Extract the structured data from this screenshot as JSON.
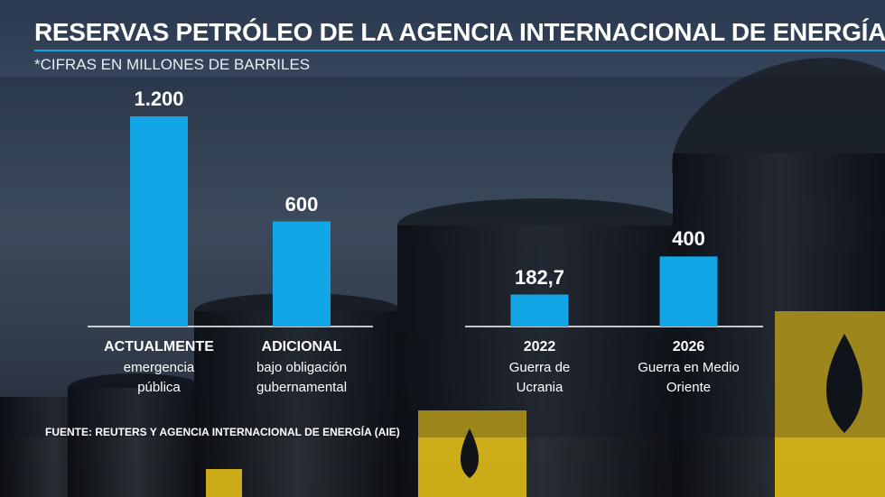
{
  "title": "RESERVAS PETRÓLEO DE LA AGENCIA INTERNACIONAL DE ENERGÍA",
  "subtitle": "*CIFRAS EN MILLONES DE BARRILES",
  "source": "FUENTE: REUTERS Y AGENCIA INTERNACIONAL DE ENERGÍA (AIE)",
  "chart_data": [
    {
      "type": "bar",
      "color": "#12a6e6",
      "categories": [
        "ACTUALMENTE",
        "ADICIONAL"
      ],
      "category_notes": [
        "emergencia pública",
        "bajo obligación gubernamental"
      ],
      "values": [
        1200,
        600
      ],
      "value_labels": [
        "1.200",
        "600"
      ]
    },
    {
      "type": "bar",
      "color": "#12a6e6",
      "categories": [
        "2022",
        "2026"
      ],
      "category_notes": [
        "Guerra de Ucrania",
        "Guerra en Medio Oriente"
      ],
      "values": [
        182.7,
        400
      ],
      "value_labels": [
        "182,7",
        "400"
      ]
    }
  ]
}
